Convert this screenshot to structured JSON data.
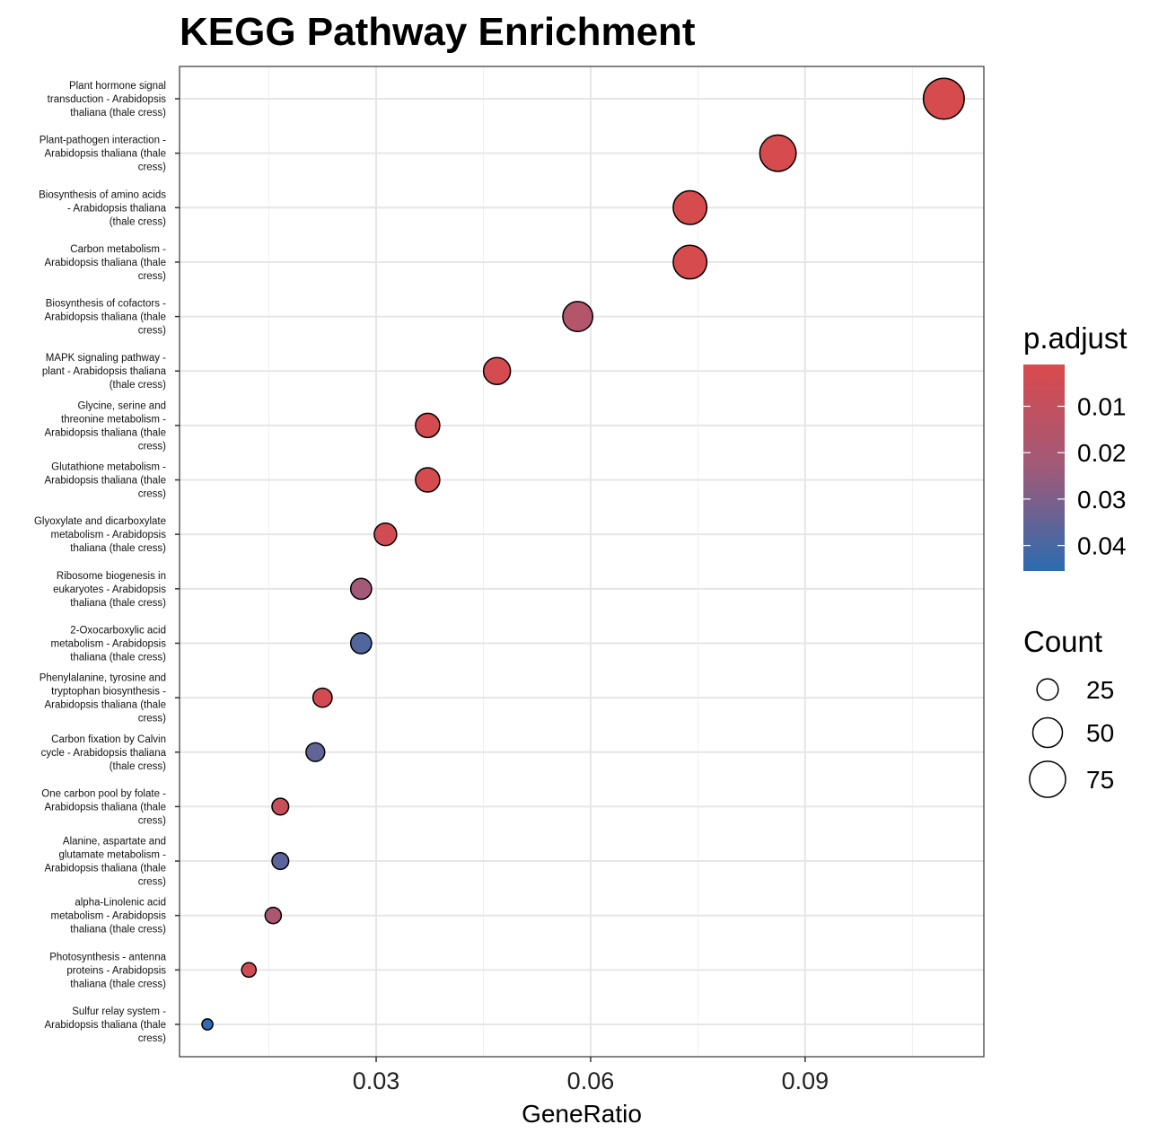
{
  "chart_data": {
    "type": "scatter",
    "title": "KEGG Pathway Enrichment",
    "xlabel": "GeneRatio",
    "ylabel": "",
    "xlim": [
      0.0025,
      0.115
    ],
    "xticks": [
      0.03,
      0.06,
      0.09
    ],
    "xtick_labels": [
      "0.03",
      "0.06",
      "0.09"
    ],
    "grid": true,
    "legend_position": "right",
    "colors": {
      "low_p": "#d94a4c",
      "high_p": "#2b6cb0",
      "point_stroke": "#000000",
      "grid": "#e6e6e6"
    },
    "points": [
      {
        "lines": [
          "Plant hormone signal",
          "transduction - Arabidopsis",
          "thaliana (thale cress)"
        ],
        "x": 0.1094,
        "count": 97,
        "p_adjust": 0.002
      },
      {
        "lines": [
          "Plant-pathogen interaction -",
          "Arabidopsis thaliana (thale",
          "cress)"
        ],
        "x": 0.0862,
        "count": 76,
        "p_adjust": 0.002
      },
      {
        "lines": [
          "Biosynthesis of amino acids",
          "- Arabidopsis thaliana",
          "(thale cress)"
        ],
        "x": 0.0739,
        "count": 65,
        "p_adjust": 0.002
      },
      {
        "lines": [
          "Carbon metabolism -",
          "Arabidopsis thaliana (thale",
          "cress)"
        ],
        "x": 0.0739,
        "count": 65,
        "p_adjust": 0.002
      },
      {
        "lines": [
          "Biosynthesis of cofactors -",
          "Arabidopsis thaliana (thale",
          "cress)"
        ],
        "x": 0.0582,
        "count": 51,
        "p_adjust": 0.016
      },
      {
        "lines": [
          "MAPK signaling pathway -",
          "plant - Arabidopsis thaliana",
          "(thale cress)"
        ],
        "x": 0.0469,
        "count": 41,
        "p_adjust": 0.003
      },
      {
        "lines": [
          "Glycine, serine and",
          "threonine metabolism -",
          "Arabidopsis thaliana (thale",
          "cress)"
        ],
        "x": 0.0372,
        "count": 33,
        "p_adjust": 0.003
      },
      {
        "lines": [
          "Glutathione metabolism -",
          "Arabidopsis thaliana (thale",
          "cress)"
        ],
        "x": 0.0372,
        "count": 33,
        "p_adjust": 0.003
      },
      {
        "lines": [
          "Glyoxylate and dicarboxylate",
          "metabolism - Arabidopsis",
          "thaliana (thale cress)"
        ],
        "x": 0.0313,
        "count": 28,
        "p_adjust": 0.004
      },
      {
        "lines": [
          "Ribosome biogenesis in",
          "eukaryotes - Arabidopsis",
          "thaliana (thale cress)"
        ],
        "x": 0.0279,
        "count": 24,
        "p_adjust": 0.022
      },
      {
        "lines": [
          "2-Oxocarboxylic acid",
          "metabolism - Arabidopsis",
          "thaliana (thale cress)"
        ],
        "x": 0.0279,
        "count": 24,
        "p_adjust": 0.038
      },
      {
        "lines": [
          "Phenylalanine, tyrosine and",
          "tryptophan biosynthesis -",
          "Arabidopsis thaliana (thale",
          "cress)"
        ],
        "x": 0.0225,
        "count": 20,
        "p_adjust": 0.004
      },
      {
        "lines": [
          "Carbon fixation by Calvin",
          "cycle - Arabidopsis thaliana",
          "(thale cress)"
        ],
        "x": 0.0215,
        "count": 19,
        "p_adjust": 0.035
      },
      {
        "lines": [
          "One carbon pool by folate -",
          "Arabidopsis thaliana (thale",
          "cress)"
        ],
        "x": 0.0166,
        "count": 15,
        "p_adjust": 0.008
      },
      {
        "lines": [
          "Alanine, aspartate and",
          "glutamate metabolism -",
          "Arabidopsis thaliana (thale",
          "cress)"
        ],
        "x": 0.0166,
        "count": 15,
        "p_adjust": 0.036
      },
      {
        "lines": [
          "alpha-Linolenic acid",
          "metabolism - Arabidopsis",
          "thaliana (thale cress)"
        ],
        "x": 0.0156,
        "count": 14,
        "p_adjust": 0.019
      },
      {
        "lines": [
          "Photosynthesis - antenna",
          "proteins - Arabidopsis",
          "thaliana (thale cress)"
        ],
        "x": 0.0122,
        "count": 11,
        "p_adjust": 0.004
      },
      {
        "lines": [
          "Sulfur relay system -",
          "Arabidopsis thaliana (thale",
          "cress)"
        ],
        "x": 0.0064,
        "count": 6,
        "p_adjust": 0.045
      }
    ],
    "color_legend": {
      "title": "p.adjust",
      "min": 0.001,
      "max": 0.0455,
      "ticks": [
        0.01,
        0.02,
        0.03,
        0.04
      ],
      "tick_labels": [
        "0.01",
        "0.02",
        "0.03",
        "0.04"
      ]
    },
    "size_legend": {
      "title": "Count",
      "values": [
        25,
        50,
        75
      ],
      "labels": [
        "25",
        "50",
        "75"
      ]
    }
  }
}
